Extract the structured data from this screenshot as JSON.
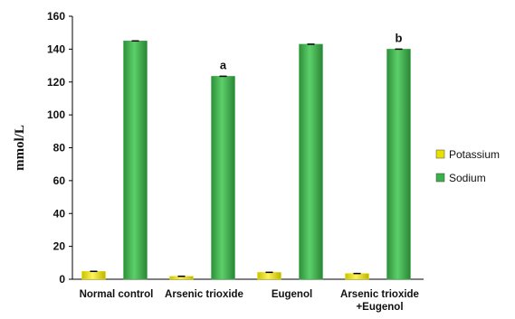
{
  "chart_data": {
    "type": "bar",
    "title": "",
    "xlabel": "",
    "ylabel": "mmol/L",
    "ylim": [
      0,
      160
    ],
    "yticks": [
      0,
      20,
      40,
      60,
      80,
      100,
      120,
      140,
      160
    ],
    "grid": false,
    "legend_position": "right",
    "categories": [
      [
        "Normal control"
      ],
      [
        "Arsenic trioxide"
      ],
      [
        "Eugenol"
      ],
      [
        "Arsenic trioxide",
        "+Eugenol"
      ]
    ],
    "series": [
      {
        "name": "Potassium",
        "values": [
          4.8,
          1.8,
          4.2,
          3.5
        ],
        "color": "#e8e000"
      },
      {
        "name": "Sodium",
        "values": [
          145,
          123.5,
          143,
          140
        ],
        "color": "#3cb04a"
      }
    ],
    "annotations": [
      {
        "category_index": 1,
        "series_index": 1,
        "text": "a"
      },
      {
        "category_index": 3,
        "series_index": 1,
        "text": "b"
      }
    ]
  }
}
